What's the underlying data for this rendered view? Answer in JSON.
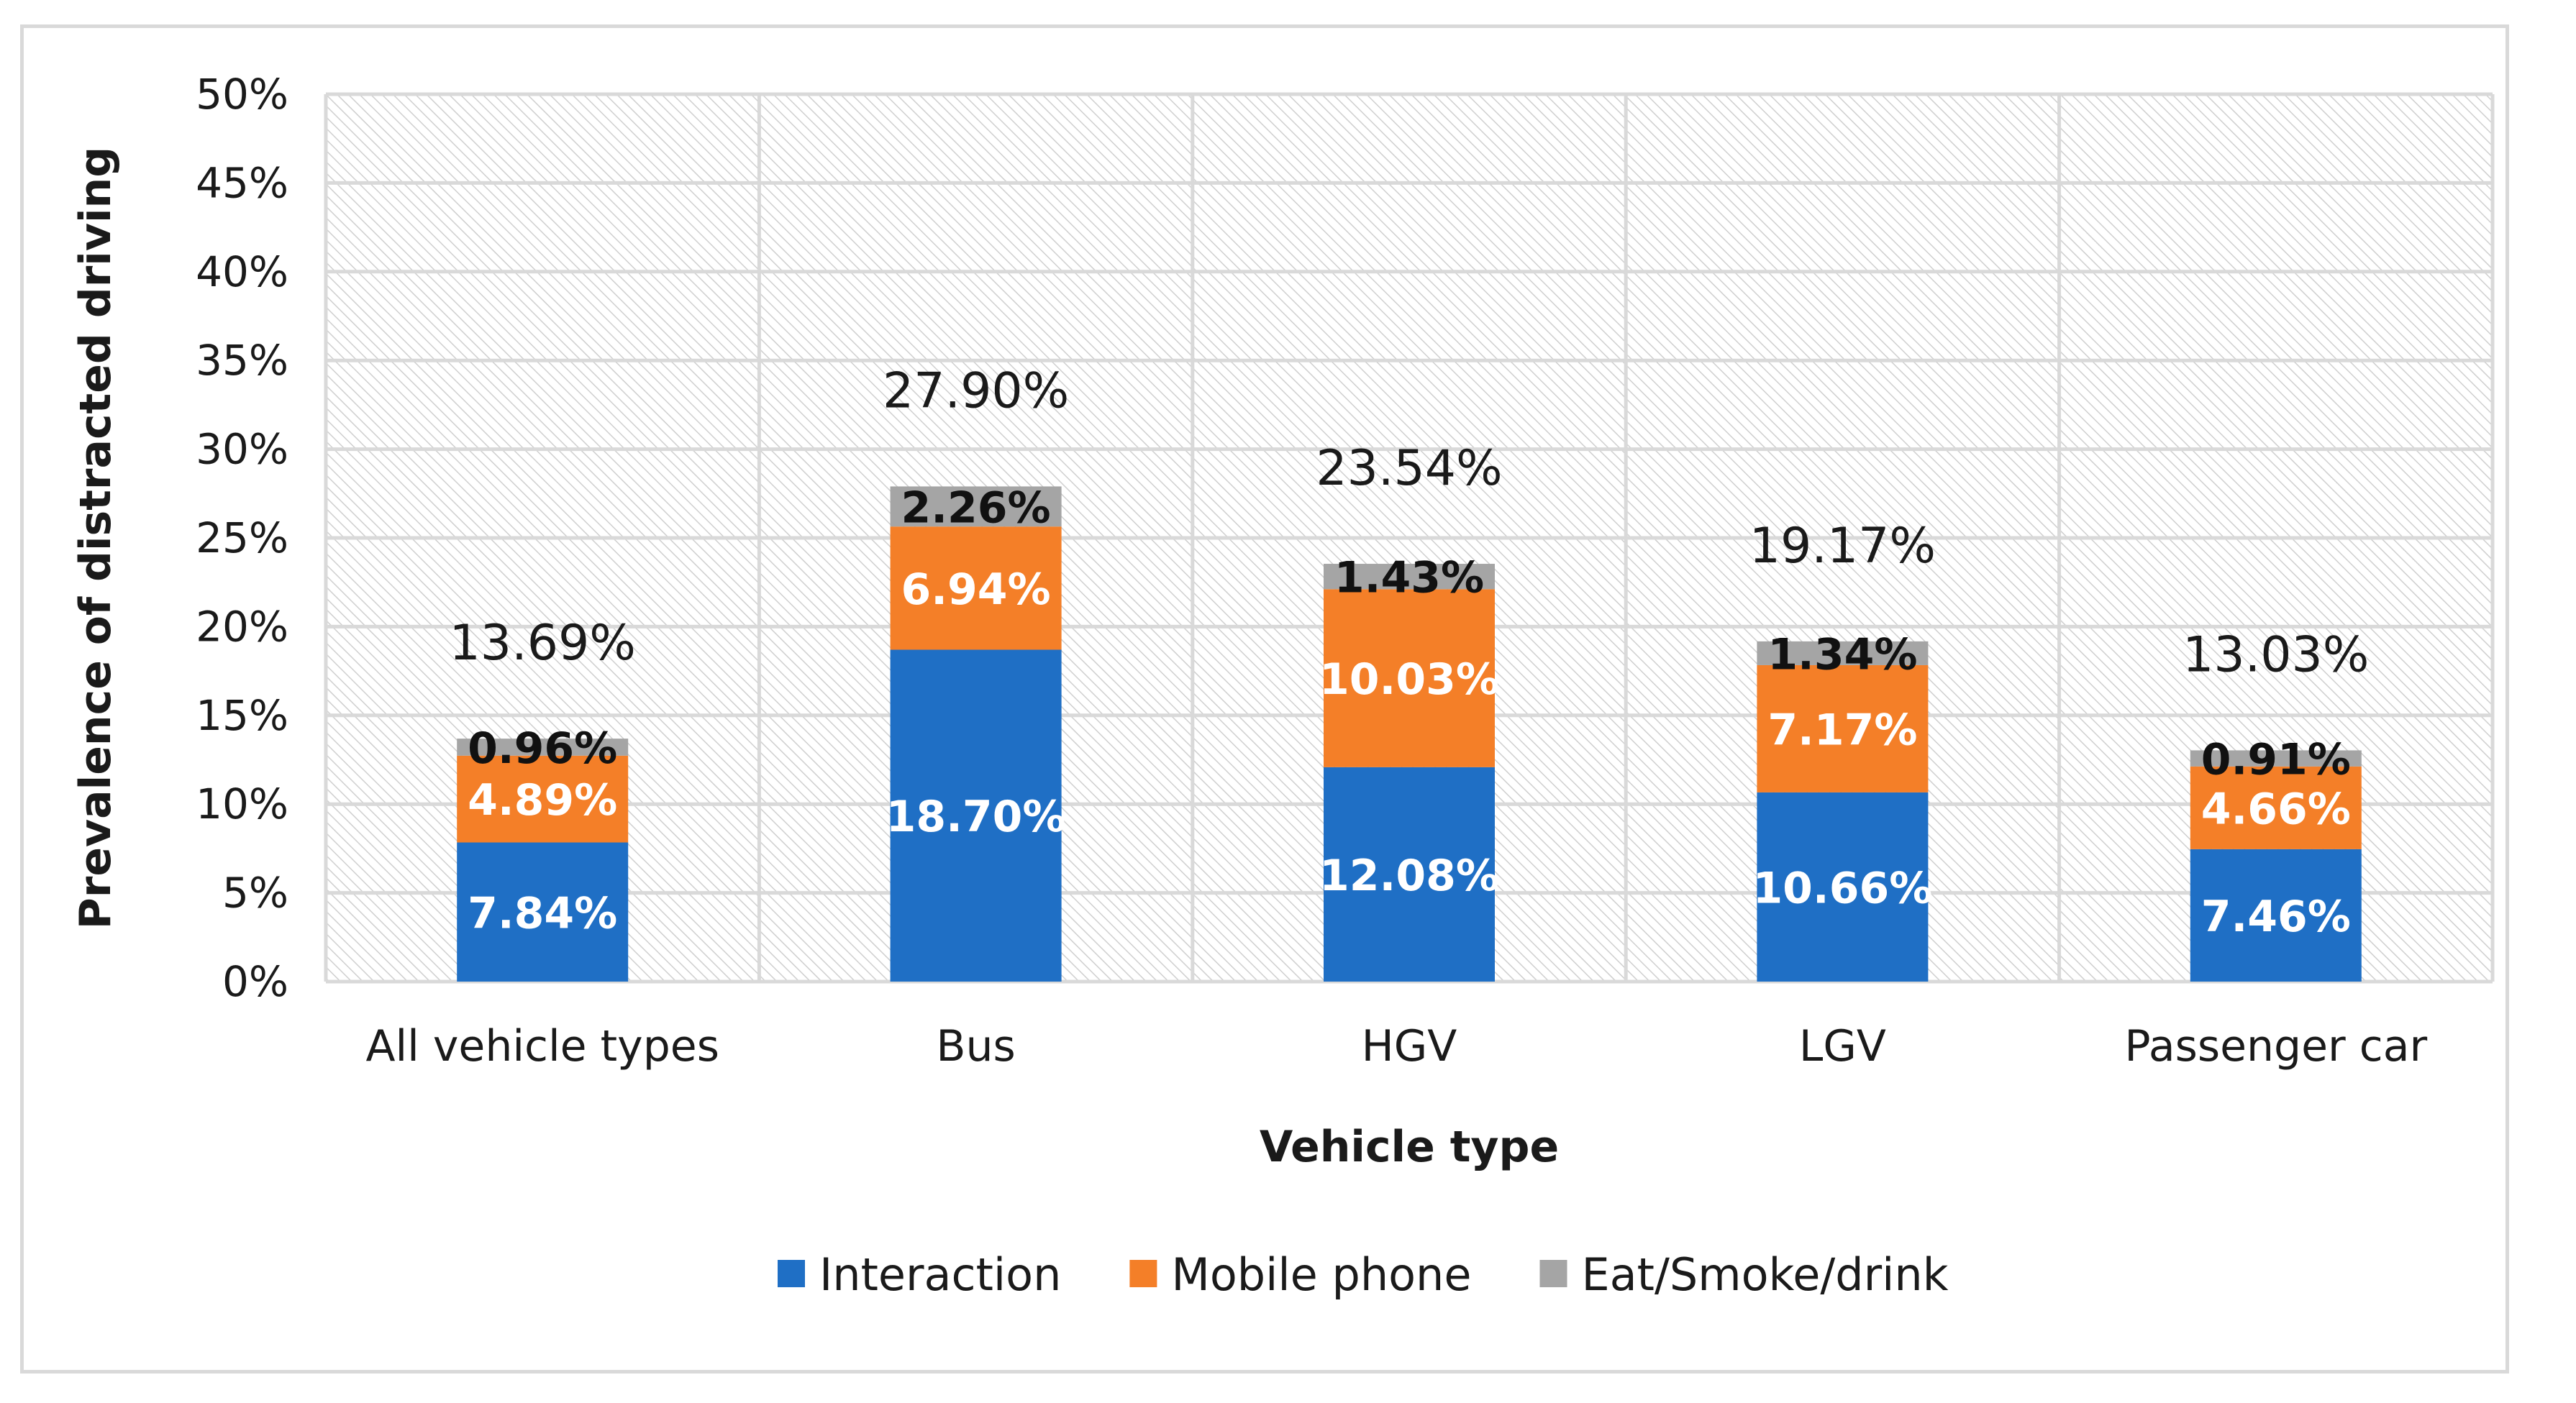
{
  "chart_data": {
    "type": "bar",
    "stacked": true,
    "title": "",
    "xlabel": "Vehicle type",
    "ylabel": "Prevalence of distracted driving",
    "ylim": [
      0,
      50
    ],
    "ytick_step": 5,
    "ytick_suffix": "%",
    "grid": true,
    "legend_position": "bottom",
    "categories": [
      "All vehicle types",
      "Bus",
      "HGV",
      "LGV",
      "Passenger car"
    ],
    "series": [
      {
        "name": "Interaction",
        "color": "#1f6fc5",
        "label_color": "#ffffff",
        "values": [
          7.84,
          18.7,
          12.08,
          10.66,
          7.46
        ],
        "labels": [
          "7.84%",
          "18.70%",
          "12.08%",
          "10.66%",
          "7.46%"
        ]
      },
      {
        "name": "Mobile phone",
        "color": "#f47f28",
        "label_color": "#ffffff",
        "values": [
          4.89,
          6.94,
          10.03,
          7.17,
          4.66
        ],
        "labels": [
          "4.89%",
          "6.94%",
          "10.03%",
          "7.17%",
          "4.66%"
        ]
      },
      {
        "name": "Eat/Smoke/drink",
        "color": "#a5a5a5",
        "label_color": "#111111",
        "values": [
          0.96,
          2.26,
          1.43,
          1.34,
          0.91
        ],
        "labels": [
          "0.96%",
          "2.26%",
          "1.43%",
          "1.34%",
          "0.91%"
        ]
      }
    ],
    "totals": [
      13.69,
      27.9,
      23.54,
      19.17,
      13.03
    ],
    "total_labels": [
      "13.69%",
      "27.90%",
      "23.54%",
      "19.17%",
      "13.03%"
    ]
  }
}
